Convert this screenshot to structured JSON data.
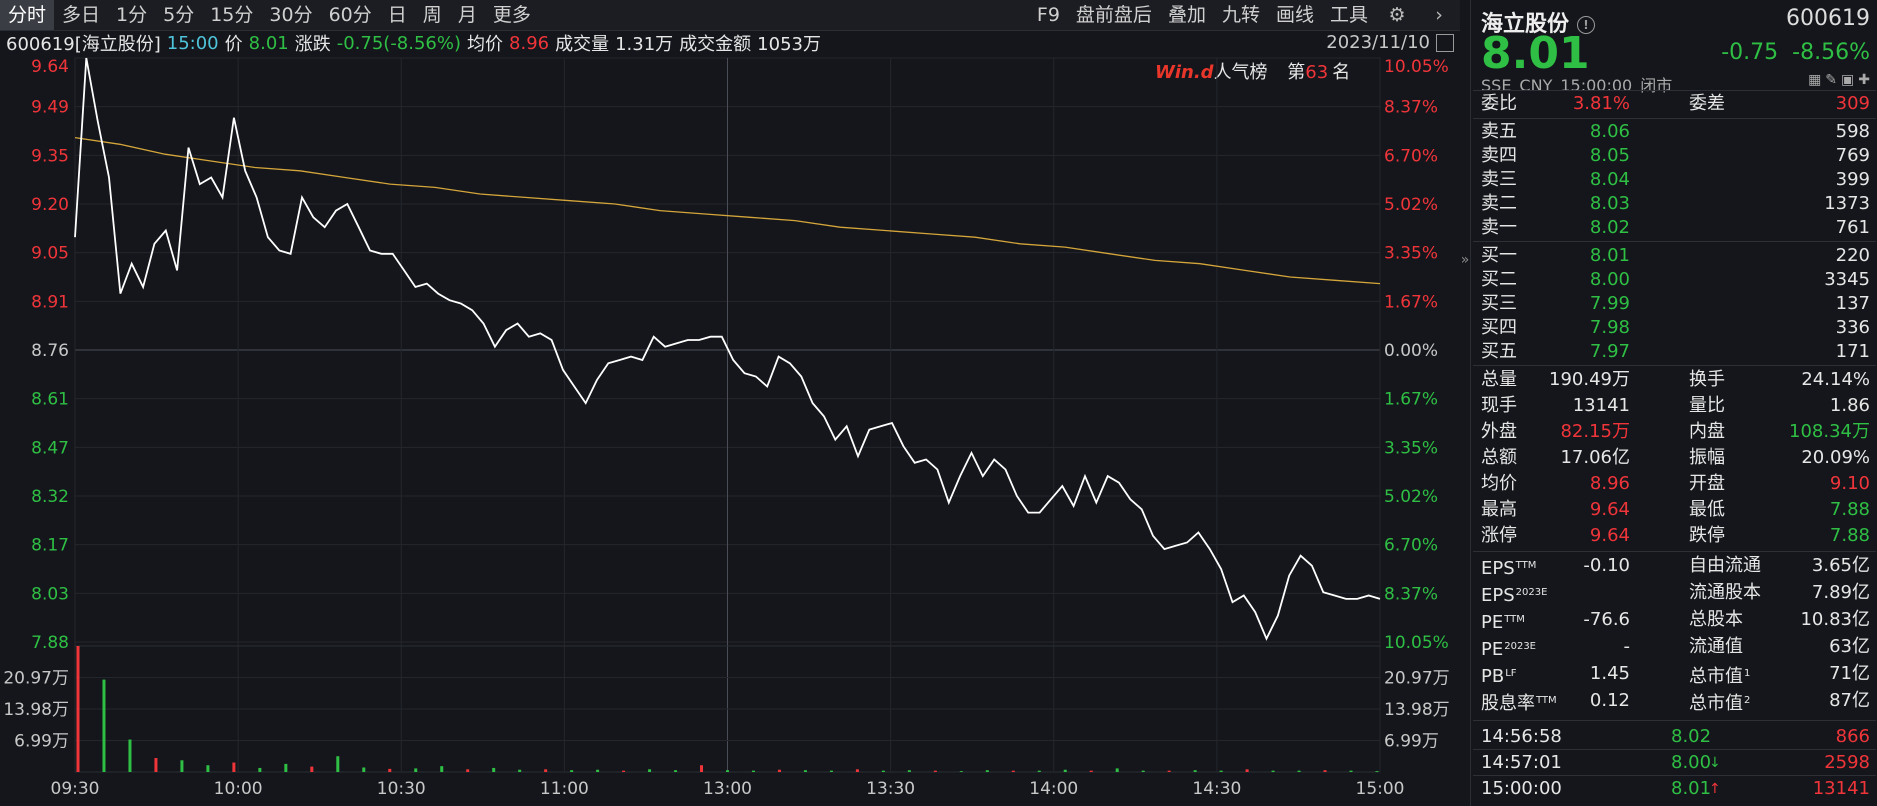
{
  "toolbar": {
    "tabs": [
      "分时",
      "多日",
      "1分",
      "5分",
      "15分",
      "30分",
      "60分",
      "日",
      "周",
      "月",
      "更多"
    ],
    "right_items": [
      "F9",
      "盘前盘后",
      "叠加",
      "九转",
      "画线",
      "工具"
    ]
  },
  "info": {
    "code_name": "600619[海立股份]",
    "time": "15:00",
    "price_label": "价",
    "price": "8.01",
    "change_label": "涨跌",
    "change": "-0.75(-8.56%)",
    "avg_label": "均价",
    "avg": "8.96",
    "vol_label": "成交量",
    "vol": "1.31万",
    "amt_label": "成交金额",
    "amt": "1053万",
    "date": "2023/11/10"
  },
  "wind": {
    "logo": "Win.d",
    "text": "人气榜",
    "rank_pre": "第",
    "rank": "63",
    "rank_post": "名"
  },
  "colors": {
    "up": "#f0353a",
    "down": "#2fbf44",
    "price_line": "#ffffff",
    "avg_line": "#d4a53a",
    "bg": "#14161b",
    "grid": "#2a2d33"
  },
  "chart_data": {
    "type": "line",
    "title": "",
    "prev_close": 8.76,
    "x_ticks": [
      "09:30",
      "10:00",
      "10:30",
      "11:00",
      "13:00",
      "13:30",
      "14:00",
      "14:30",
      "15:00"
    ],
    "y_ticks_left": [
      "9.64",
      "9.49",
      "9.35",
      "9.20",
      "9.05",
      "8.91",
      "8.76",
      "8.61",
      "8.47",
      "8.32",
      "8.17",
      "8.03",
      "7.88"
    ],
    "y_ticks_right": [
      "10.05%",
      "8.37%",
      "6.70%",
      "5.02%",
      "3.35%",
      "1.67%",
      "0.00%",
      "1.67%",
      "3.35%",
      "5.02%",
      "6.70%",
      "8.37%",
      "10.05%"
    ],
    "ylim": [
      7.88,
      9.64
    ],
    "vol_ticks": [
      "20.97万",
      "13.98万",
      "6.99万"
    ],
    "vol_max": 27.96,
    "series": [
      {
        "values": [
          9.1,
          9.64,
          9.45,
          9.28,
          8.93,
          9.02,
          8.95,
          9.08,
          9.12,
          9.0,
          9.37,
          9.26,
          9.28,
          9.22,
          9.46,
          9.3,
          9.22,
          9.1,
          9.06,
          9.05,
          9.22,
          9.16,
          9.13,
          9.18,
          9.2,
          9.13,
          9.06,
          9.05,
          9.05,
          9.0,
          8.95,
          8.96,
          8.93,
          8.91,
          8.9,
          8.88,
          8.84,
          8.77,
          8.82,
          8.84,
          8.8,
          8.81,
          8.79,
          8.7,
          8.65,
          8.6,
          8.67,
          8.72,
          8.73,
          8.74,
          8.73,
          8.8,
          8.77,
          8.78,
          8.79,
          8.79,
          8.8,
          8.8,
          8.73,
          8.69,
          8.68,
          8.65,
          8.74,
          8.72,
          8.68,
          8.6,
          8.56,
          8.49,
          8.53,
          8.44,
          8.52,
          8.53,
          8.54,
          8.47,
          8.42,
          8.43,
          8.4,
          8.3,
          8.38,
          8.45,
          8.38,
          8.43,
          8.4,
          8.32,
          8.27,
          8.27,
          8.31,
          8.35,
          8.29,
          8.38,
          8.3,
          8.38,
          8.36,
          8.31,
          8.28,
          8.2,
          8.16,
          8.17,
          8.18,
          8.21,
          8.16,
          8.1,
          8.0,
          8.02,
          7.97,
          7.89,
          7.96,
          8.08,
          8.14,
          8.11,
          8.03,
          8.02,
          8.01,
          8.01,
          8.02,
          8.01
        ]
      },
      {
        "values": [
          9.4,
          9.38,
          9.35,
          9.33,
          9.31,
          9.3,
          9.28,
          9.26,
          9.25,
          9.23,
          9.22,
          9.21,
          9.2,
          9.18,
          9.17,
          9.16,
          9.15,
          9.13,
          9.12,
          9.11,
          9.1,
          9.08,
          9.07,
          9.05,
          9.03,
          9.02,
          9.0,
          8.98,
          8.97,
          8.96
        ]
      }
    ],
    "volume": [
      27.96,
      20.5,
      7.2,
      3.1,
      2.6,
      1.5,
      2.1,
      0.9,
      1.8,
      1.2,
      3.5,
      1.0,
      0.7,
      0.8,
      1.3,
      0.6,
      0.9,
      0.5,
      0.6,
      0.4,
      0.5,
      0.3,
      0.6,
      0.4,
      1.5,
      0.4,
      0.3,
      0.5,
      0.4,
      0.3,
      0.6,
      0.3,
      0.4,
      0.3,
      0.2,
      0.4,
      0.3,
      0.3,
      0.5,
      0.3,
      0.8,
      0.3,
      0.3,
      0.4,
      0.3,
      0.6,
      0.3,
      0.3,
      0.4,
      0.3,
      0.2
    ]
  },
  "panel": {
    "name": "海立股份",
    "code": "600619",
    "price": "8.01",
    "chg": "-0.75",
    "chg_pct": "-8.56%",
    "exch": "SSE",
    "cur": "CNY",
    "time": "15:00:00",
    "status": "闭市",
    "wb_label": "委比",
    "wb": "3.81%",
    "wc_label": "委差",
    "wc": "309",
    "asks": [
      {
        "label": "卖五",
        "price": "8.06",
        "vol": "598"
      },
      {
        "label": "卖四",
        "price": "8.05",
        "vol": "769"
      },
      {
        "label": "卖三",
        "price": "8.04",
        "vol": "399"
      },
      {
        "label": "卖二",
        "price": "8.03",
        "vol": "1373"
      },
      {
        "label": "卖一",
        "price": "8.02",
        "vol": "761"
      }
    ],
    "bids": [
      {
        "label": "买一",
        "price": "8.01",
        "vol": "220"
      },
      {
        "label": "买二",
        "price": "8.00",
        "vol": "3345"
      },
      {
        "label": "买三",
        "price": "7.99",
        "vol": "137"
      },
      {
        "label": "买四",
        "price": "7.98",
        "vol": "336"
      },
      {
        "label": "买五",
        "price": "7.97",
        "vol": "171"
      }
    ],
    "stats": [
      {
        "l1": "总量",
        "v1": "190.49万",
        "c1": "white",
        "l2": "换手",
        "v2": "24.14%",
        "c2": "white"
      },
      {
        "l1": "现手",
        "v1": "13141",
        "c1": "white",
        "l2": "量比",
        "v2": "1.86",
        "c2": "white"
      },
      {
        "l1": "外盘",
        "v1": "82.15万",
        "c1": "red",
        "l2": "内盘",
        "v2": "108.34万",
        "c2": "green"
      },
      {
        "l1": "总额",
        "v1": "17.06亿",
        "c1": "white",
        "l2": "振幅",
        "v2": "20.09%",
        "c2": "white"
      },
      {
        "l1": "均价",
        "v1": "8.96",
        "c1": "red",
        "l2": "开盘",
        "v2": "9.10",
        "c2": "red"
      },
      {
        "l1": "最高",
        "v1": "9.64",
        "c1": "red",
        "l2": "最低",
        "v2": "7.88",
        "c2": "green"
      },
      {
        "l1": "涨停",
        "v1": "9.64",
        "c1": "red",
        "l2": "跌停",
        "v2": "7.88",
        "c2": "green"
      }
    ],
    "fin": [
      {
        "l1": "EPS",
        "s1": "TTM",
        "v1": "-0.10",
        "l2": "自由流通",
        "s2": "",
        "v2": "3.65亿"
      },
      {
        "l1": "EPS",
        "s1": "2023E",
        "v1": "",
        "l2": "流通股本",
        "s2": "",
        "v2": "7.89亿"
      },
      {
        "l1": "PE",
        "s1": "TTM",
        "v1": "-76.6",
        "l2": "总股本",
        "s2": "",
        "v2": "10.83亿"
      },
      {
        "l1": "PE",
        "s1": "2023E",
        "v1": "-",
        "l2": "流通值",
        "s2": "",
        "v2": "63亿"
      },
      {
        "l1": "PB",
        "s1": "LF",
        "v1": "1.45",
        "l2": "总市值",
        "s2": "1",
        "v2": "71亿"
      },
      {
        "l1": "股息率",
        "s1": "TTM",
        "v1": "0.12",
        "l2": "总市值",
        "s2": "2",
        "v2": "87亿"
      }
    ],
    "ticks": [
      {
        "time": "14:56:58",
        "price": "8.02",
        "arrow": "",
        "vol": "866"
      },
      {
        "time": "14:57:01",
        "price": "8.00",
        "arrow": "↓",
        "vol": "2598"
      },
      {
        "time": "15:00:00",
        "price": "8.01",
        "arrow": "↑",
        "vol": "13141"
      }
    ]
  }
}
